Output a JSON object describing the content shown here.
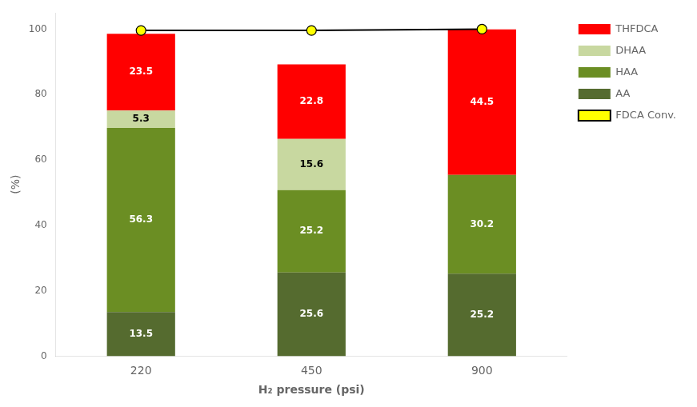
{
  "chart_data": {
    "type": "bar",
    "stacked": true,
    "xlabel": "H₂ pressure (psi)",
    "ylabel": "(%)",
    "categories": [
      "220",
      "450",
      "900"
    ],
    "series": [
      {
        "name": "AA",
        "color": "#556b2f",
        "values": [
          13.5,
          25.6,
          25.2
        ]
      },
      {
        "name": "HAA",
        "color": "#6b8e23",
        "values": [
          56.3,
          25.2,
          30.2
        ]
      },
      {
        "name": "DHAA",
        "color": "#c8d8a0",
        "values": [
          5.3,
          15.6,
          0.0
        ]
      },
      {
        "name": "THFDCA",
        "color": "#ff0000",
        "values": [
          23.5,
          22.8,
          44.5
        ]
      },
      {
        "name": "FDCA Conv.",
        "type": "line",
        "color": "#000000",
        "colors": [
          "#ffff00",
          "#ffff00",
          "#ffff00"
        ],
        "marker": "circle",
        "line_style": "solid",
        "data_labels": false,
        "values": [
          99.6,
          99.6,
          100.0
        ]
      }
    ],
    "ylim": [
      0,
      105
    ],
    "yticks": [
      0,
      20,
      40,
      60,
      80,
      100
    ],
    "grid": false,
    "legend": "right",
    "data_labels": true
  }
}
